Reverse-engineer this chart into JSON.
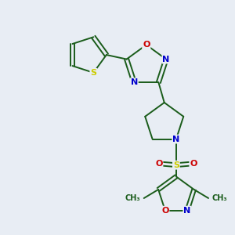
{
  "background_color": "#e8edf4",
  "bond_color": "#1a5c1a",
  "atom_colors": {
    "S": "#cccc00",
    "N": "#0000cc",
    "O": "#cc0000",
    "C": "#1a5c1a"
  },
  "figsize": [
    3.0,
    3.0
  ],
  "dpi": 100
}
